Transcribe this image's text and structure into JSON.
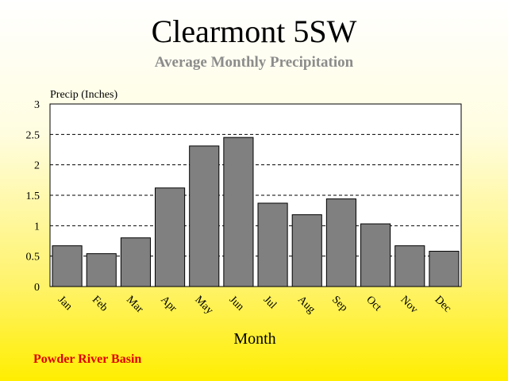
{
  "title": "Clearmont 5SW",
  "subtitle": "Average Monthly Precipitation",
  "footer": "Powder River Basin",
  "chart_data": {
    "type": "bar",
    "categories": [
      "Jan",
      "Feb",
      "Mar",
      "Apr",
      "May",
      "Jun",
      "Jul",
      "Aug",
      "Sep",
      "Oct",
      "Nov",
      "Dec"
    ],
    "values": [
      0.67,
      0.54,
      0.8,
      1.62,
      2.31,
      2.45,
      1.37,
      1.18,
      1.44,
      1.03,
      0.67,
      0.58
    ],
    "xlabel": "Month",
    "ylabel": "Precip (Inches)",
    "ylim": [
      0,
      3
    ],
    "yticks": [
      "0",
      "0.5",
      "1",
      "1.5",
      "2",
      "2.5",
      "3"
    ],
    "grid": true,
    "colors": {
      "bar": "#808080",
      "bar_edge": "#000000",
      "plot_bg": "#ffffff"
    }
  }
}
